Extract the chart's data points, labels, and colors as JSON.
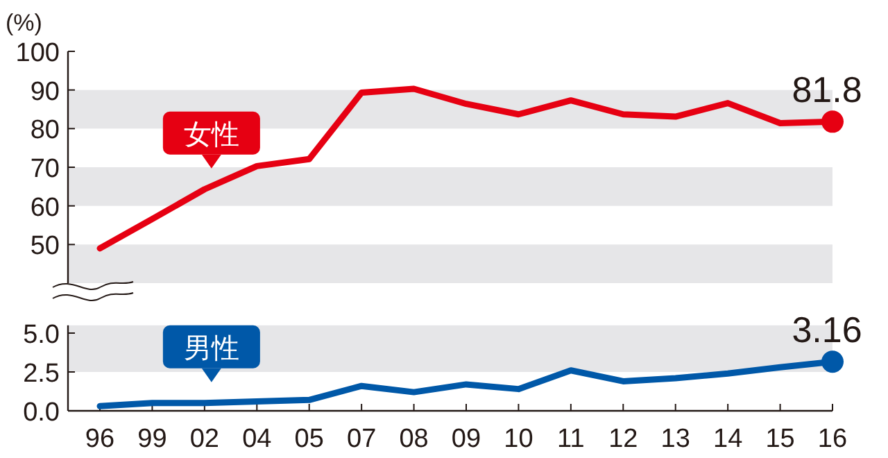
{
  "chart_data": [
    {
      "type": "line",
      "ylabel": "(%)",
      "categories": [
        "96",
        "99",
        "02",
        "04",
        "05",
        "07",
        "08",
        "09",
        "10",
        "11",
        "12",
        "13",
        "14",
        "15",
        "16"
      ],
      "ylim": [
        40,
        100
      ],
      "yticks": [
        50,
        60,
        70,
        80,
        90,
        100
      ],
      "tick_labels": "y",
      "bands": [
        {
          "axis": "y",
          "from": 40,
          "to": 50,
          "color": "#e6e6e8"
        },
        {
          "axis": "y",
          "from": 60,
          "to": 70,
          "color": "#e6e6e8"
        },
        {
          "axis": "y",
          "from": 80,
          "to": 90,
          "color": "#e6e6e8"
        }
      ],
      "series": [
        {
          "name": "女性",
          "color": "#e60012",
          "values": [
            49,
            56.6,
            64.3,
            70.3,
            72.1,
            89.3,
            90.3,
            86.4,
            83.7,
            87.3,
            83.7,
            83.1,
            86.6,
            81.4,
            81.8
          ],
          "value_labels": [
            null,
            null,
            null,
            null,
            null,
            null,
            null,
            null,
            null,
            null,
            null,
            null,
            null,
            null,
            "81.8"
          ]
        }
      ]
    },
    {
      "type": "line",
      "categories": [
        "96",
        "99",
        "02",
        "04",
        "05",
        "07",
        "08",
        "09",
        "10",
        "11",
        "12",
        "13",
        "14",
        "15",
        "16"
      ],
      "ylim": [
        0,
        5.5
      ],
      "yticks": [
        {
          "value": 0,
          "label": "0.0"
        },
        {
          "value": 2.5,
          "label": "2.5"
        },
        {
          "value": 5,
          "label": "5.0"
        }
      ],
      "bands": [
        {
          "axis": "y",
          "from": 2.5,
          "to": 5.5,
          "color": "#e6e6e8"
        }
      ],
      "series": [
        {
          "name": "男性",
          "color": "#0058a8",
          "values": [
            0.3,
            0.5,
            0.5,
            0.6,
            0.7,
            1.6,
            1.2,
            1.7,
            1.4,
            2.6,
            1.9,
            2.1,
            2.4,
            2.8,
            3.16
          ],
          "value_labels": [
            null,
            null,
            null,
            null,
            null,
            null,
            null,
            null,
            null,
            null,
            null,
            null,
            null,
            null,
            "3.16"
          ]
        }
      ]
    }
  ]
}
